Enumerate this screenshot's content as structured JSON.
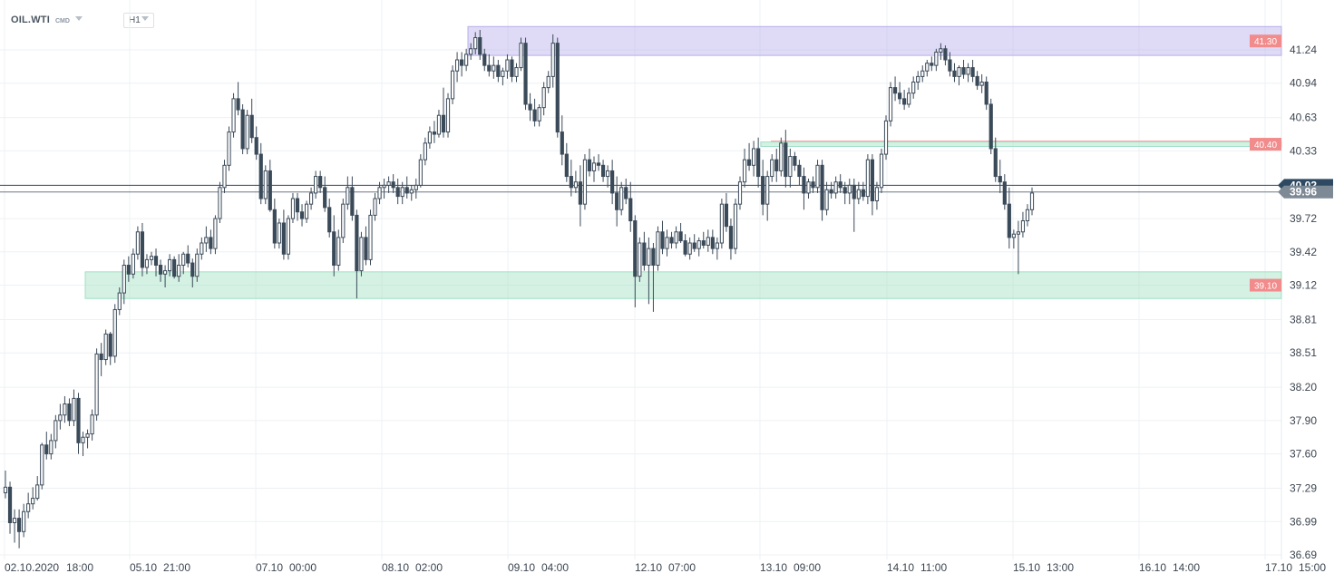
{
  "toolbar": {
    "symbol": "OIL.WTI",
    "symbol_type": "CMD",
    "timeframe": "H1"
  },
  "chart_data": {
    "type": "candlestick",
    "symbol": "OIL.WTI",
    "timeframe": "H1",
    "y_range": [
      36.62,
      41.45
    ],
    "y_ticks": [
      "41.24",
      "40.94",
      "40.63",
      "40.33",
      "40.02",
      "39.72",
      "39.42",
      "39.12",
      "38.81",
      "38.51",
      "38.20",
      "37.90",
      "37.60",
      "37.29",
      "36.99",
      "36.69"
    ],
    "x_ticks": [
      "02.10.2020",
      "18:00",
      "05.10",
      "21:00",
      "07.10",
      "00:00",
      "08.10",
      "02:00",
      "09.10",
      "04:00",
      "12.10",
      "07:00",
      "13.10",
      "09:00",
      "14.10",
      "11:00",
      "15.10",
      "13:00",
      "16.10",
      "14:00",
      "17.10",
      "15:00"
    ],
    "zones": [
      {
        "name": "resistance-upper",
        "label": "41.30",
        "top": 41.45,
        "bottom": 41.19,
        "color": "#b7b0ea"
      },
      {
        "name": "resistance-mid",
        "label": "40.40",
        "top": 40.41,
        "bottom": 40.37,
        "color": "#9fe0c4"
      },
      {
        "name": "support",
        "label": "39.10",
        "top": 39.24,
        "bottom": 39.0,
        "color": "#9fe0c4"
      }
    ],
    "current_price": "39.96",
    "ask_price": "40.02",
    "colors": {
      "candle": "#3b4a59",
      "zone_label_bg": "#f28b8b",
      "price_tag_bg": "#7d8a96",
      "ask_line": "#2e4a63"
    },
    "candles": [
      [
        37.25,
        37.45,
        37.2,
        37.3
      ],
      [
        37.3,
        37.35,
        36.88,
        36.98
      ],
      [
        36.98,
        37.1,
        36.8,
        37.02
      ],
      [
        37.02,
        37.1,
        36.75,
        36.9
      ],
      [
        36.9,
        37.15,
        36.85,
        37.08
      ],
      [
        37.08,
        37.25,
        37.02,
        37.15
      ],
      [
        37.15,
        37.3,
        37.1,
        37.2
      ],
      [
        37.2,
        37.4,
        37.18,
        37.32
      ],
      [
        37.32,
        37.7,
        37.28,
        37.68
      ],
      [
        37.68,
        37.8,
        37.55,
        37.6
      ],
      [
        37.6,
        37.78,
        37.55,
        37.72
      ],
      [
        37.72,
        37.95,
        37.65,
        37.9
      ],
      [
        37.9,
        38.05,
        37.82,
        37.95
      ],
      [
        37.95,
        38.12,
        37.88,
        38.05
      ],
      [
        38.05,
        38.1,
        37.85,
        37.9
      ],
      [
        37.9,
        38.18,
        37.85,
        38.1
      ],
      [
        38.1,
        38.15,
        37.6,
        37.7
      ],
      [
        37.7,
        37.8,
        37.58,
        37.75
      ],
      [
        37.75,
        37.82,
        37.65,
        37.78
      ],
      [
        37.78,
        38.0,
        37.72,
        37.95
      ],
      [
        37.95,
        38.55,
        37.9,
        38.5
      ],
      [
        38.5,
        38.6,
        38.3,
        38.45
      ],
      [
        38.45,
        38.72,
        38.4,
        38.68
      ],
      [
        38.68,
        38.7,
        38.4,
        38.48
      ],
      [
        38.48,
        38.95,
        38.42,
        38.9
      ],
      [
        38.9,
        39.1,
        38.85,
        39.05
      ],
      [
        39.05,
        39.35,
        38.95,
        39.3
      ],
      [
        39.3,
        39.38,
        39.15,
        39.22
      ],
      [
        39.22,
        39.45,
        39.18,
        39.4
      ],
      [
        39.4,
        39.65,
        39.35,
        39.6
      ],
      [
        39.6,
        39.68,
        39.2,
        39.28
      ],
      [
        39.28,
        39.4,
        39.22,
        39.35
      ],
      [
        39.35,
        39.42,
        39.3,
        39.38
      ],
      [
        39.38,
        39.45,
        39.2,
        39.3
      ],
      [
        39.3,
        39.35,
        39.15,
        39.22
      ],
      [
        39.22,
        39.3,
        39.1,
        39.25
      ],
      [
        39.25,
        39.4,
        39.2,
        39.35
      ],
      [
        39.35,
        39.38,
        39.18,
        39.2
      ],
      [
        39.2,
        39.4,
        39.15,
        39.3
      ],
      [
        39.3,
        39.42,
        39.22,
        39.4
      ],
      [
        39.4,
        39.48,
        39.28,
        39.32
      ],
      [
        39.32,
        39.36,
        39.1,
        39.2
      ],
      [
        39.2,
        39.45,
        39.15,
        39.4
      ],
      [
        39.4,
        39.55,
        39.35,
        39.5
      ],
      [
        39.5,
        39.65,
        39.42,
        39.55
      ],
      [
        39.55,
        39.62,
        39.4,
        39.45
      ],
      [
        39.45,
        39.75,
        39.4,
        39.72
      ],
      [
        39.72,
        40.05,
        39.68,
        40.0
      ],
      [
        40.0,
        40.25,
        39.95,
        40.2
      ],
      [
        40.2,
        40.55,
        40.15,
        40.5
      ],
      [
        40.5,
        40.85,
        40.45,
        40.8
      ],
      [
        40.8,
        40.95,
        40.65,
        40.7
      ],
      [
        40.7,
        40.75,
        40.3,
        40.35
      ],
      [
        40.35,
        40.7,
        40.3,
        40.65
      ],
      [
        40.65,
        40.8,
        40.4,
        40.45
      ],
      [
        40.45,
        40.55,
        40.25,
        40.3
      ],
      [
        40.3,
        40.4,
        39.85,
        39.9
      ],
      [
        39.9,
        40.2,
        39.85,
        40.15
      ],
      [
        40.15,
        40.25,
        39.78,
        39.8
      ],
      [
        39.8,
        39.9,
        39.45,
        39.5
      ],
      [
        39.5,
        39.72,
        39.45,
        39.68
      ],
      [
        39.68,
        39.8,
        39.35,
        39.4
      ],
      [
        39.4,
        39.75,
        39.35,
        39.72
      ],
      [
        39.72,
        39.95,
        39.68,
        39.9
      ],
      [
        39.9,
        39.95,
        39.7,
        39.78
      ],
      [
        39.78,
        39.85,
        39.65,
        39.72
      ],
      [
        39.72,
        39.88,
        39.68,
        39.85
      ],
      [
        39.85,
        40.0,
        39.8,
        39.95
      ],
      [
        39.95,
        40.15,
        39.9,
        40.1
      ],
      [
        40.1,
        40.15,
        39.95,
        40.0
      ],
      [
        40.0,
        40.1,
        39.78,
        39.82
      ],
      [
        39.82,
        39.9,
        39.55,
        39.6
      ],
      [
        39.6,
        39.75,
        39.2,
        39.3
      ],
      [
        39.3,
        39.62,
        39.25,
        39.55
      ],
      [
        39.55,
        39.9,
        39.5,
        39.85
      ],
      [
        39.85,
        40.1,
        39.8,
        40.0
      ],
      [
        40.0,
        40.1,
        39.7,
        39.75
      ],
      [
        39.75,
        39.8,
        39.0,
        39.25
      ],
      [
        39.25,
        39.6,
        39.2,
        39.55
      ],
      [
        39.55,
        39.65,
        39.3,
        39.35
      ],
      [
        39.35,
        39.8,
        39.3,
        39.75
      ],
      [
        39.75,
        39.95,
        39.7,
        39.9
      ],
      [
        39.9,
        40.05,
        39.85,
        40.0
      ],
      [
        40.0,
        40.08,
        39.9,
        40.02
      ],
      [
        40.02,
        40.1,
        39.95,
        40.05
      ],
      [
        40.05,
        40.12,
        39.95,
        40.0
      ],
      [
        40.0,
        40.08,
        39.85,
        39.92
      ],
      [
        39.92,
        40.05,
        39.85,
        40.0
      ],
      [
        40.0,
        40.1,
        39.9,
        39.95
      ],
      [
        39.95,
        40.02,
        39.88,
        39.98
      ],
      [
        39.98,
        40.08,
        39.9,
        40.02
      ],
      [
        40.02,
        40.3,
        40.0,
        40.25
      ],
      [
        40.25,
        40.45,
        40.2,
        40.4
      ],
      [
        40.4,
        40.55,
        40.35,
        40.5
      ],
      [
        40.5,
        40.6,
        40.4,
        40.48
      ],
      [
        40.48,
        40.7,
        40.45,
        40.65
      ],
      [
        40.65,
        40.9,
        40.45,
        40.5
      ],
      [
        40.5,
        40.85,
        40.45,
        40.8
      ],
      [
        40.8,
        41.1,
        40.75,
        41.05
      ],
      [
        41.05,
        41.22,
        40.95,
        41.15
      ],
      [
        41.15,
        41.22,
        41.0,
        41.1
      ],
      [
        41.1,
        41.25,
        41.05,
        41.2
      ],
      [
        41.2,
        41.3,
        41.15,
        41.25
      ],
      [
        41.25,
        41.4,
        41.2,
        41.35
      ],
      [
        41.35,
        41.42,
        41.15,
        41.2
      ],
      [
        41.2,
        41.25,
        41.05,
        41.1
      ],
      [
        41.1,
        41.2,
        41.0,
        41.05
      ],
      [
        41.05,
        41.18,
        40.98,
        41.1
      ],
      [
        41.1,
        41.15,
        40.95,
        41.0
      ],
      [
        41.0,
        41.08,
        40.92,
        41.05
      ],
      [
        41.05,
        41.2,
        40.98,
        41.15
      ],
      [
        41.15,
        41.18,
        40.95,
        41.0
      ],
      [
        41.0,
        41.12,
        40.95,
        41.08
      ],
      [
        41.08,
        41.35,
        41.05,
        41.3
      ],
      [
        41.3,
        41.35,
        40.7,
        40.75
      ],
      [
        40.75,
        40.85,
        40.6,
        40.7
      ],
      [
        40.7,
        40.8,
        40.55,
        40.6
      ],
      [
        40.6,
        40.75,
        40.55,
        40.72
      ],
      [
        40.72,
        40.95,
        40.65,
        40.9
      ],
      [
        40.9,
        41.05,
        40.85,
        41.0
      ],
      [
        41.0,
        41.38,
        40.9,
        41.3
      ],
      [
        41.3,
        41.35,
        40.45,
        40.5
      ],
      [
        40.5,
        40.65,
        40.2,
        40.3
      ],
      [
        40.3,
        40.4,
        40.05,
        40.1
      ],
      [
        40.1,
        40.25,
        39.92,
        40.0
      ],
      [
        40.0,
        40.15,
        39.95,
        40.05
      ],
      [
        40.05,
        40.2,
        39.65,
        39.85
      ],
      [
        39.85,
        40.3,
        39.8,
        40.25
      ],
      [
        40.25,
        40.35,
        40.1,
        40.15
      ],
      [
        40.15,
        40.28,
        40.05,
        40.22
      ],
      [
        40.22,
        40.3,
        40.15,
        40.2
      ],
      [
        40.2,
        40.25,
        40.05,
        40.1
      ],
      [
        40.1,
        40.2,
        40.0,
        40.15
      ],
      [
        40.15,
        40.25,
        39.85,
        39.95
      ],
      [
        39.95,
        40.1,
        39.65,
        39.8
      ],
      [
        39.8,
        40.05,
        39.75,
        40.0
      ],
      [
        40.0,
        40.08,
        39.85,
        39.9
      ],
      [
        39.9,
        40.05,
        39.6,
        39.7
      ],
      [
        39.7,
        39.75,
        38.92,
        39.2
      ],
      [
        39.2,
        39.55,
        39.15,
        39.5
      ],
      [
        39.5,
        39.6,
        39.25,
        39.3
      ],
      [
        39.3,
        39.55,
        38.95,
        39.45
      ],
      [
        39.45,
        39.5,
        38.88,
        39.3
      ],
      [
        39.3,
        39.65,
        39.25,
        39.6
      ],
      [
        39.6,
        39.7,
        39.4,
        39.45
      ],
      [
        39.45,
        39.62,
        39.38,
        39.55
      ],
      [
        39.55,
        39.6,
        39.45,
        39.5
      ],
      [
        39.5,
        39.65,
        39.45,
        39.6
      ],
      [
        39.6,
        39.68,
        39.5,
        39.52
      ],
      [
        39.52,
        39.58,
        39.38,
        39.4
      ],
      [
        39.4,
        39.55,
        39.35,
        39.5
      ],
      [
        39.5,
        39.58,
        39.42,
        39.45
      ],
      [
        39.45,
        39.55,
        39.38,
        39.52
      ],
      [
        39.52,
        39.6,
        39.45,
        39.48
      ],
      [
        39.48,
        39.62,
        39.42,
        39.55
      ],
      [
        39.55,
        39.62,
        39.4,
        39.45
      ],
      [
        39.45,
        39.55,
        39.35,
        39.5
      ],
      [
        39.5,
        39.9,
        39.45,
        39.85
      ],
      [
        39.85,
        39.95,
        39.6,
        39.65
      ],
      [
        39.65,
        39.72,
        39.35,
        39.45
      ],
      [
        39.45,
        39.9,
        39.4,
        39.85
      ],
      [
        39.85,
        40.1,
        39.8,
        40.05
      ],
      [
        40.05,
        40.35,
        40.0,
        40.25
      ],
      [
        40.25,
        40.4,
        40.15,
        40.2
      ],
      [
        40.2,
        40.42,
        40.1,
        40.35
      ],
      [
        40.35,
        40.45,
        40.0,
        40.1
      ],
      [
        40.1,
        40.25,
        39.75,
        39.85
      ],
      [
        39.85,
        40.15,
        39.7,
        40.1
      ],
      [
        40.1,
        40.3,
        40.05,
        40.25
      ],
      [
        40.25,
        40.35,
        40.05,
        40.15
      ],
      [
        40.15,
        40.45,
        40.1,
        40.4
      ],
      [
        40.4,
        40.52,
        40.0,
        40.1
      ],
      [
        40.1,
        40.35,
        40.0,
        40.28
      ],
      [
        40.28,
        40.32,
        40.15,
        40.2
      ],
      [
        40.2,
        40.25,
        40.02,
        40.1
      ],
      [
        40.1,
        40.18,
        39.8,
        39.95
      ],
      [
        39.95,
        40.08,
        39.9,
        40.05
      ],
      [
        40.05,
        40.1,
        39.95,
        40.0
      ],
      [
        40.0,
        40.25,
        39.95,
        40.2
      ],
      [
        40.2,
        40.25,
        39.7,
        39.8
      ],
      [
        39.8,
        40.05,
        39.75,
        39.98
      ],
      [
        39.98,
        40.05,
        39.9,
        39.95
      ],
      [
        39.95,
        40.1,
        39.9,
        40.05
      ],
      [
        40.05,
        40.12,
        39.95,
        40.0
      ],
      [
        40.0,
        40.05,
        39.85,
        39.95
      ],
      [
        39.95,
        40.08,
        39.85,
        40.02
      ],
      [
        40.02,
        40.08,
        39.6,
        39.9
      ],
      [
        39.9,
        40.05,
        39.85,
        39.98
      ],
      [
        39.98,
        40.05,
        39.88,
        39.92
      ],
      [
        39.92,
        40.3,
        39.85,
        40.25
      ],
      [
        40.25,
        40.3,
        39.75,
        39.88
      ],
      [
        39.88,
        40.05,
        39.8,
        40.0
      ],
      [
        40.0,
        40.35,
        39.95,
        40.3
      ],
      [
        40.3,
        40.65,
        40.25,
        40.6
      ],
      [
        40.6,
        40.95,
        40.55,
        40.9
      ],
      [
        40.9,
        41.0,
        40.78,
        40.85
      ],
      [
        40.85,
        40.95,
        40.75,
        40.8
      ],
      [
        40.8,
        40.88,
        40.7,
        40.75
      ],
      [
        40.75,
        40.9,
        40.72,
        40.85
      ],
      [
        40.85,
        41.0,
        40.8,
        40.95
      ],
      [
        40.95,
        41.05,
        40.88,
        41.0
      ],
      [
        41.0,
        41.1,
        40.95,
        41.05
      ],
      [
        41.05,
        41.15,
        41.0,
        41.12
      ],
      [
        41.12,
        41.18,
        41.05,
        41.1
      ],
      [
        41.1,
        41.25,
        41.05,
        41.22
      ],
      [
        41.22,
        41.3,
        41.15,
        41.25
      ],
      [
        41.25,
        41.28,
        41.1,
        41.15
      ],
      [
        41.15,
        41.22,
        41.0,
        41.05
      ],
      [
        41.05,
        41.12,
        40.95,
        41.0
      ],
      [
        41.0,
        41.1,
        40.92,
        41.08
      ],
      [
        41.08,
        41.15,
        40.98,
        41.02
      ],
      [
        41.02,
        41.12,
        40.95,
        41.08
      ],
      [
        41.08,
        41.15,
        40.95,
        41.0
      ],
      [
        41.0,
        41.05,
        40.88,
        40.92
      ],
      [
        40.92,
        41.02,
        40.85,
        40.95
      ],
      [
        40.95,
        41.0,
        40.7,
        40.75
      ],
      [
        40.75,
        40.8,
        40.3,
        40.35
      ],
      [
        40.35,
        40.45,
        40.05,
        40.1
      ],
      [
        40.1,
        40.25,
        39.95,
        40.05
      ],
      [
        40.05,
        40.12,
        39.8,
        39.85
      ],
      [
        39.85,
        40.0,
        39.45,
        39.55
      ],
      [
        39.55,
        39.62,
        39.45,
        39.58
      ],
      [
        39.58,
        39.7,
        39.22,
        39.6
      ],
      [
        39.6,
        39.78,
        39.55,
        39.7
      ],
      [
        39.7,
        39.85,
        39.65,
        39.8
      ],
      [
        39.8,
        40.0,
        39.75,
        39.95
      ]
    ]
  }
}
